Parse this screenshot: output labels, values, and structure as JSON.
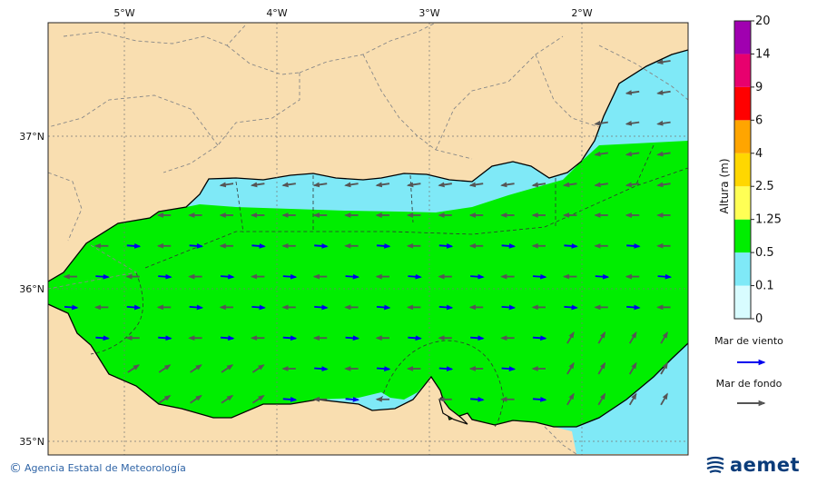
{
  "map": {
    "lon_labels": [
      "5°W",
      "4°W",
      "3°W",
      "2°W"
    ],
    "lat_labels": [
      "37°N",
      "36°N",
      "35°N"
    ],
    "extent": {
      "lon_min": -5.5,
      "lon_max": -1.3,
      "lat_min": 34.9,
      "lat_max": 37.75
    }
  },
  "colorbar": {
    "title": "Altura (m)",
    "ticks": [
      "0",
      "0.1",
      "0.5",
      "1.25",
      "2.5",
      "4",
      "6",
      "9",
      "14",
      "20"
    ],
    "bins": [
      {
        "range": "0 - 0.1",
        "color": "#d8fcff"
      },
      {
        "range": "0.1 - 0.5",
        "color": "#7fe9f7"
      },
      {
        "range": "0.5 - 1.25",
        "color": "#00ee00"
      },
      {
        "range": "1.25 - 2.5",
        "color": "#ffff55"
      },
      {
        "range": "2.5 - 4",
        "color": "#ffd700"
      },
      {
        "range": "4 - 6",
        "color": "#ffa500"
      },
      {
        "range": "6 - 9",
        "color": "#ff0000"
      },
      {
        "range": "9 - 14",
        "color": "#e8006e"
      },
      {
        "range": "14 - 20",
        "color": "#a000b0"
      }
    ]
  },
  "legend": {
    "wind_sea_label": "Mar de viento",
    "wind_sea_color": "#0000ee",
    "swell_label": "Mar de fondo",
    "swell_color": "#555555"
  },
  "colors": {
    "land": "#f9deb0",
    "sea_calm": "#7fe9f7",
    "sea_moderate": "#00ee00"
  },
  "footer": {
    "credit": "Agencia Estatal de Meteorología",
    "logo": "aemet"
  }
}
